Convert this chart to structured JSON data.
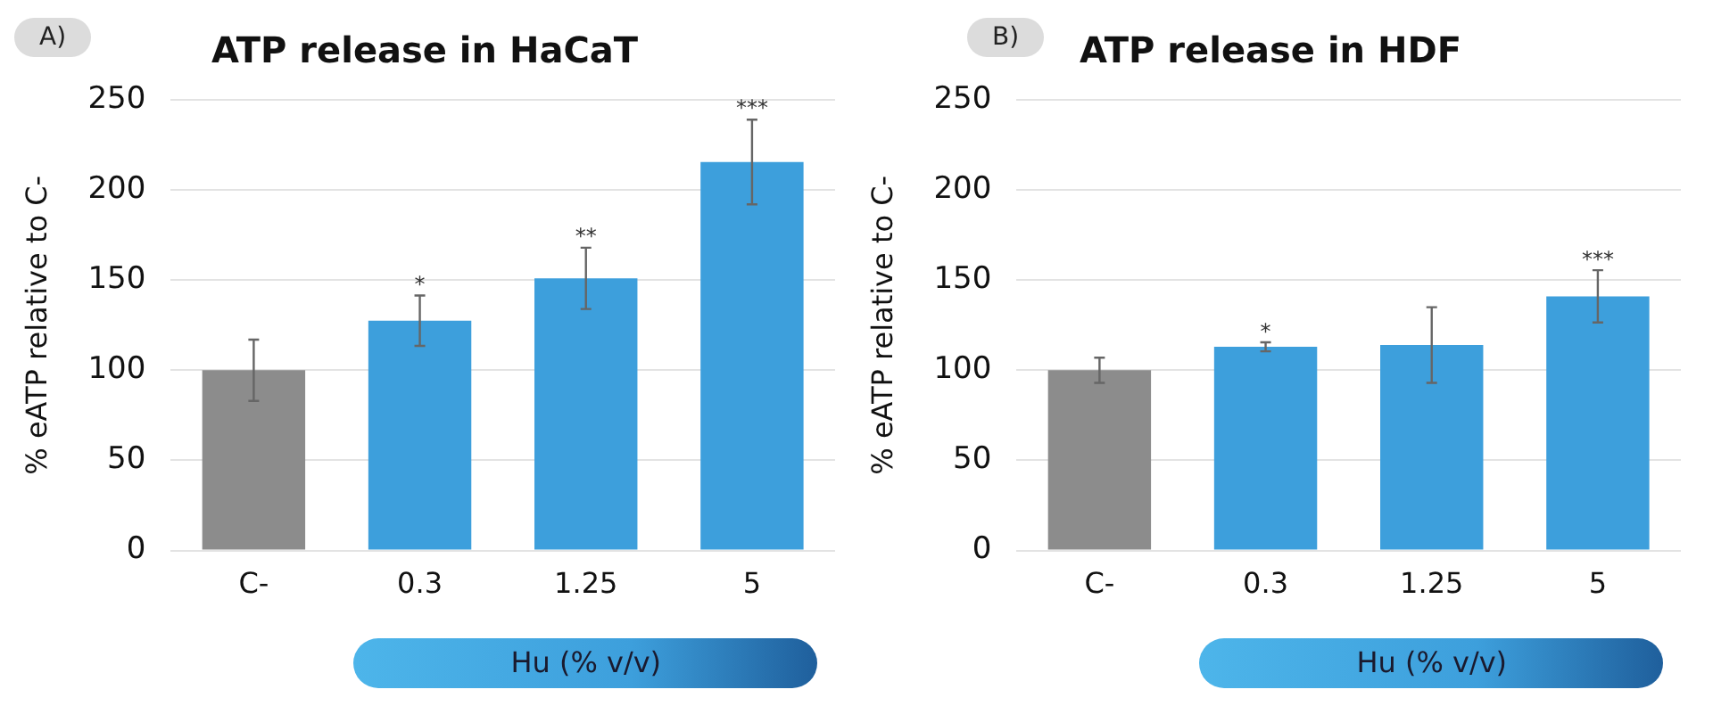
{
  "chart_data": [
    {
      "type": "bar",
      "title": "ATP release in HaCaT",
      "xlabel": "Hu (% v/v)",
      "ylabel": "% eATP relative to C-",
      "categories": [
        "C-",
        "0.3",
        "1.25",
        "5"
      ],
      "values": [
        100,
        127.5,
        151,
        215.5
      ],
      "colors": [
        "#8c8c8c",
        "#3d9fdc",
        "#3d9fdc",
        "#3d9fdc"
      ],
      "errors": [
        17,
        14,
        17,
        23.5
      ],
      "ylim": [
        0,
        250
      ],
      "yticks": [
        0,
        50,
        100,
        150,
        200,
        250
      ],
      "grid": "y",
      "annotations": [
        "A)",
        {
          "text": "*",
          "x": "0.3",
          "y": 141.8
        },
        {
          "text": "**",
          "x": "1.25",
          "y": 168.5
        },
        {
          "text": "***",
          "x": "5",
          "y": 239.5
        }
      ]
    },
    {
      "type": "bar",
      "title": "ATP release in HDF",
      "xlabel": "Hu (% v/v)",
      "ylabel": "% eATP relative to C-",
      "categories": [
        "C-",
        "0.3",
        "1.25",
        "5"
      ],
      "values": [
        100,
        113,
        114,
        141
      ],
      "colors": [
        "#8c8c8c",
        "#3d9fdc",
        "#3d9fdc",
        "#3d9fdc"
      ],
      "errors": [
        7,
        2.5,
        21,
        14.5
      ],
      "ylim": [
        0,
        250
      ],
      "yticks": [
        0,
        50,
        100,
        150,
        200,
        250
      ],
      "grid": "y",
      "annotations": [
        "B)",
        {
          "text": "*",
          "x": "0.3",
          "y": 115.5
        },
        {
          "text": "***",
          "x": "5",
          "y": 155.5
        }
      ]
    }
  ]
}
